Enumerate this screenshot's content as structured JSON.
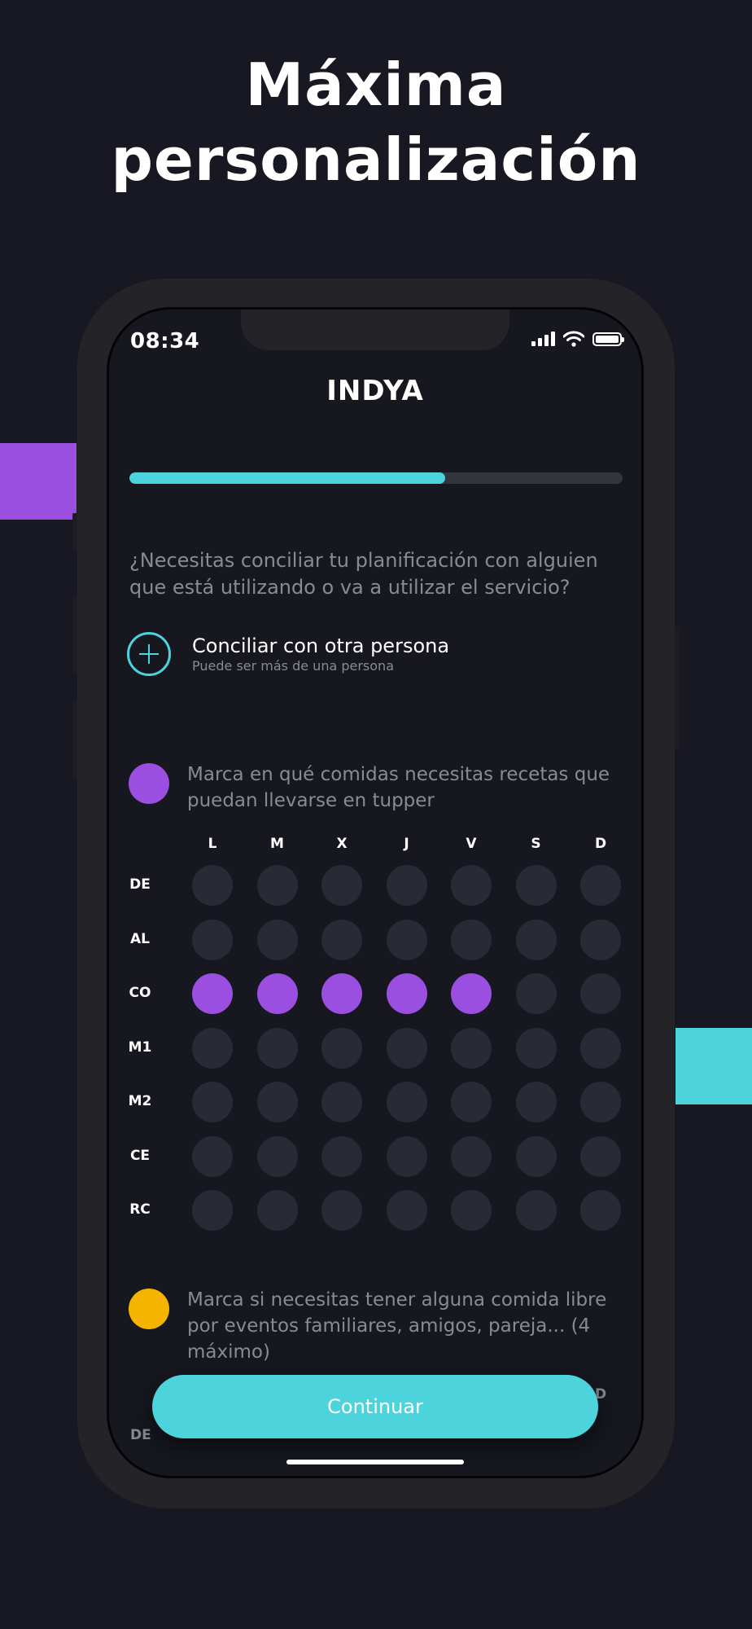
{
  "headline": {
    "line1": "Máxima",
    "line2": "personalización"
  },
  "status_bar": {
    "time": "08:34",
    "icons": [
      "signal-icon",
      "wifi-icon",
      "battery-icon"
    ]
  },
  "brand": "INDYA",
  "progress": {
    "value": 0.64
  },
  "question": "¿Necesitas conciliar tu planificación con alguien que está utilizando o va a utilizar el servicio?",
  "add_person": {
    "title": "Conciliar con otra persona",
    "subtitle": "Puede ser más de una persona",
    "icon": "plus-circle-icon"
  },
  "tupper_section": {
    "text": "Marca en qué comidas necesitas recetas que puedan llevarse en tupper",
    "color": "#9a4fe0",
    "days": [
      "L",
      "M",
      "X",
      "J",
      "V",
      "S",
      "D"
    ],
    "rows": [
      {
        "label": "DE",
        "selected": [
          false,
          false,
          false,
          false,
          false,
          false,
          false
        ]
      },
      {
        "label": "AL",
        "selected": [
          false,
          false,
          false,
          false,
          false,
          false,
          false
        ]
      },
      {
        "label": "CO",
        "selected": [
          true,
          true,
          true,
          true,
          true,
          false,
          false
        ]
      },
      {
        "label": "M1",
        "selected": [
          false,
          false,
          false,
          false,
          false,
          false,
          false
        ]
      },
      {
        "label": "M2",
        "selected": [
          false,
          false,
          false,
          false,
          false,
          false,
          false
        ]
      },
      {
        "label": "CE",
        "selected": [
          false,
          false,
          false,
          false,
          false,
          false,
          false
        ]
      },
      {
        "label": "RC",
        "selected": [
          false,
          false,
          false,
          false,
          false,
          false,
          false
        ]
      }
    ]
  },
  "free_meal_section": {
    "text": "Marca si necesitas tener alguna comida libre por eventos familiares, amigos, pareja... (4 máximo)",
    "color": "#f5b400",
    "partial_day_label": "D",
    "partial_row_label": "DE"
  },
  "continue_button": {
    "label": "Continuar",
    "color": "#4cd3dc"
  },
  "colors": {
    "background": "#181822",
    "accent_cyan": "#4cd3dc",
    "accent_purple": "#9a4fe0",
    "accent_yellow": "#f5b400"
  }
}
